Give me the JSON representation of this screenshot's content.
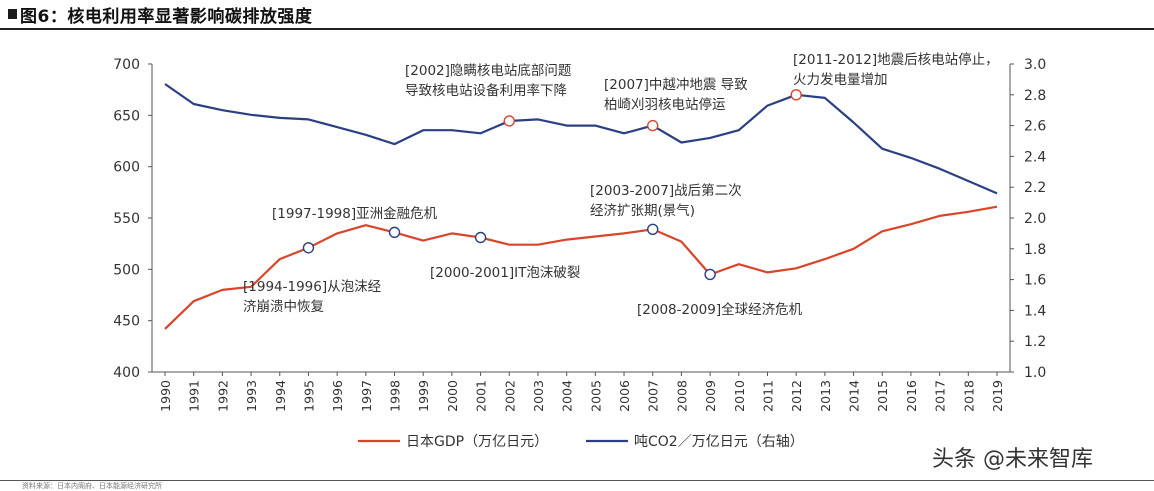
{
  "title": "图6：核电利用率显著影响碳排放强度",
  "source_fragment": "资料来源：日本内阁府、日本能源经济研究所",
  "watermark": "头条 @未来智库",
  "chart_data": {
    "type": "line",
    "x": [
      "1990",
      "1991",
      "1992",
      "1993",
      "1994",
      "1995",
      "1996",
      "1997",
      "1998",
      "1999",
      "2000",
      "2001",
      "2002",
      "2003",
      "2004",
      "2005",
      "2006",
      "2007",
      "2008",
      "2009",
      "2010",
      "2011",
      "2012",
      "2013",
      "2014",
      "2015",
      "2016",
      "2017",
      "2018",
      "2019"
    ],
    "series": [
      {
        "name": "日本GDP（万亿日元）",
        "axis": "left",
        "color": "#d9452b",
        "values": [
          442,
          469,
          480,
          483,
          510,
          521,
          535,
          543,
          536,
          528,
          535,
          531,
          524,
          524,
          529,
          532,
          535,
          539,
          527,
          495,
          505,
          497,
          501,
          510,
          520,
          537,
          544,
          552,
          556,
          561
        ]
      },
      {
        "name": "吨CO2／万亿日元（右轴）",
        "axis": "right",
        "color": "#2b3f84",
        "values": [
          2.87,
          2.74,
          2.7,
          2.67,
          2.65,
          2.64,
          2.59,
          2.54,
          2.48,
          2.57,
          2.57,
          2.55,
          2.63,
          2.64,
          2.6,
          2.6,
          2.55,
          2.6,
          2.49,
          2.52,
          2.57,
          2.73,
          2.8,
          2.78,
          2.62,
          2.45,
          2.39,
          2.32,
          2.24,
          2.16
        ]
      }
    ],
    "y_left": {
      "ticks": [
        "400",
        "450",
        "500",
        "550",
        "600",
        "650",
        "700"
      ],
      "ylim": [
        400,
        700
      ]
    },
    "y_right": {
      "ticks": [
        "1.0",
        "1.2",
        "1.4",
        "1.6",
        "1.8",
        "2.0",
        "2.2",
        "2.4",
        "2.6",
        "2.8",
        "3.0"
      ],
      "ylim": [
        1.0,
        3.0
      ]
    },
    "grid": false,
    "legend_placement": "bottom",
    "markers": [
      {
        "series": 0,
        "year": "1995"
      },
      {
        "series": 0,
        "year": "1998"
      },
      {
        "series": 0,
        "year": "2001"
      },
      {
        "series": 0,
        "year": "2007"
      },
      {
        "series": 0,
        "year": "2009"
      },
      {
        "series": 1,
        "year": "2002"
      },
      {
        "series": 1,
        "year": "2007"
      },
      {
        "series": 1,
        "year": "2012"
      }
    ],
    "annotations": [
      {
        "lines": [
          "[1994-1996]从泡沫经",
          "济崩溃中恢复"
        ]
      },
      {
        "lines": [
          "[1997-1998]亚洲金融危机"
        ]
      },
      {
        "lines": [
          "[2000-2001]IT泡沫破裂"
        ]
      },
      {
        "lines": [
          "[2002]隐瞒核电站底部问题",
          "导致核电站设备利用率下降"
        ]
      },
      {
        "lines": [
          "[2003-2007]战后第二次",
          "经济扩张期(景气)"
        ]
      },
      {
        "lines": [
          "[2007]中越冲地震 导致",
          "柏崎刈羽核电站停运"
        ]
      },
      {
        "lines": [
          "[2008-2009]全球经济危机"
        ]
      },
      {
        "lines": [
          "[2011-2012]地震后核电站停止，",
          "火力发电量增加"
        ]
      }
    ]
  }
}
